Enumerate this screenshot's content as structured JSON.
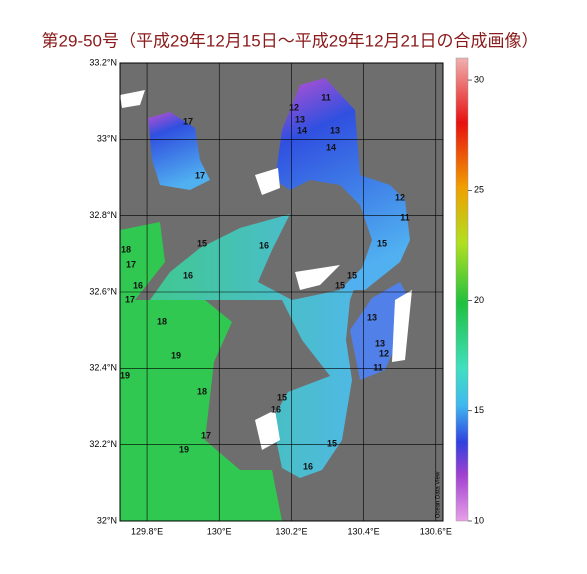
{
  "title": "第29-50号（平成29年12月15日～平成29年12月21日の合成画像）",
  "map": {
    "xlim": [
      129.725,
      130.62
    ],
    "ylim": [
      32,
      33.2
    ],
    "lat_ticks": [
      {
        "value": 33.2,
        "label": "33.2°N"
      },
      {
        "value": 33,
        "label": "33°N"
      },
      {
        "value": 32.8,
        "label": "32.8°N"
      },
      {
        "value": 32.6,
        "label": "32.6°N"
      },
      {
        "value": 32.4,
        "label": "32.4°N"
      },
      {
        "value": 32.2,
        "label": "32.2°N"
      },
      {
        "value": 32,
        "label": "32°N"
      }
    ],
    "lon_ticks": [
      {
        "value": 129.8,
        "label": "129.8°E"
      },
      {
        "value": 130,
        "label": "130°E"
      },
      {
        "value": 130.2,
        "label": "130.2°E"
      },
      {
        "value": 130.4,
        "label": "130.4°E"
      },
      {
        "value": 130.6,
        "label": "130.6°E"
      }
    ],
    "contour_labels": [
      "11",
      "12",
      "13",
      "14",
      "13",
      "14",
      "17",
      "17",
      "12",
      "11",
      "15",
      "15",
      "15",
      "16",
      "15",
      "16",
      "18",
      "17",
      "16",
      "17",
      "18",
      "19",
      "19",
      "18",
      "17",
      "19",
      "15",
      "16",
      "15",
      "16",
      "13",
      "12",
      "11",
      "13"
    ]
  },
  "colorbar": {
    "range": [
      10,
      31
    ],
    "ticks": [
      10,
      15,
      20,
      25,
      30
    ]
  },
  "credit": "Ocean Data View"
}
